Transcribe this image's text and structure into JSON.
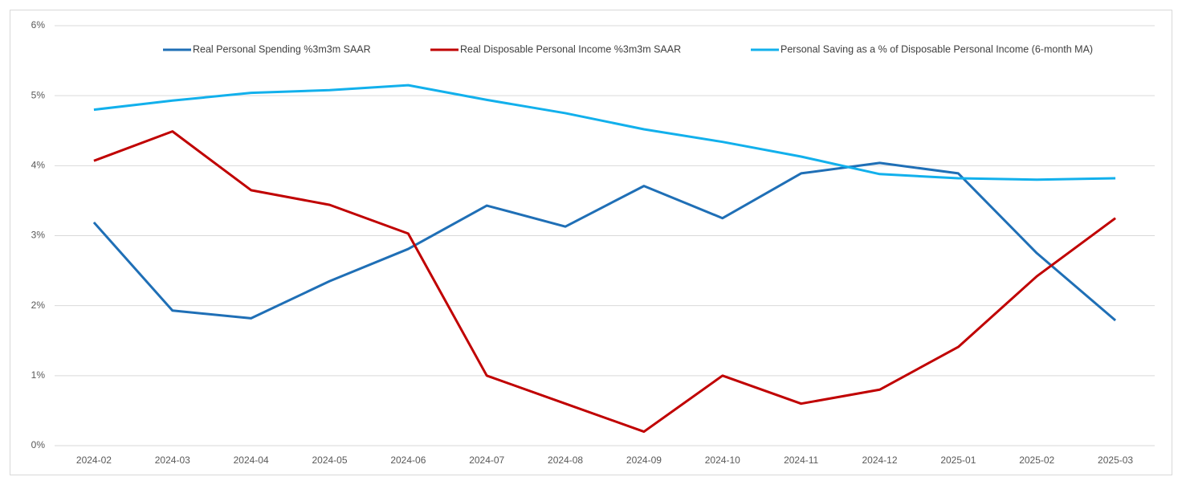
{
  "chart_data": {
    "type": "line",
    "categories": [
      "2024-02",
      "2024-03",
      "2024-04",
      "2024-05",
      "2024-06",
      "2024-07",
      "2024-08",
      "2024-09",
      "2024-10",
      "2024-11",
      "2024-12",
      "2025-01",
      "2025-02",
      "2025-03"
    ],
    "series": [
      {
        "name": "Real Personal Spending %3m3m SAAR",
        "color": "#1f6fb6",
        "values": [
          3.19,
          1.93,
          1.82,
          2.35,
          2.81,
          3.43,
          3.13,
          3.71,
          3.25,
          3.89,
          4.04,
          3.89,
          2.75,
          1.79
        ]
      },
      {
        "name": "Real Disposable Personal Income  %3m3m SAAR",
        "color": "#c00000",
        "values": [
          4.07,
          4.49,
          3.65,
          3.44,
          3.03,
          1.0,
          0.6,
          0.2,
          1.0,
          0.6,
          0.8,
          1.41,
          2.42,
          3.25
        ]
      },
      {
        "name": "Personal Saving as a % of Disposable Personal Income (6-month MA)",
        "color": "#12b0ec",
        "values": [
          4.8,
          4.93,
          5.04,
          5.08,
          5.15,
          4.94,
          4.75,
          4.52,
          4.34,
          4.13,
          3.88,
          3.82,
          3.8,
          3.82
        ]
      }
    ],
    "ylim": [
      0,
      6
    ],
    "yticks": [
      {
        "value": 0,
        "label": "0%"
      },
      {
        "value": 1,
        "label": "1%"
      },
      {
        "value": 2,
        "label": "2%"
      },
      {
        "value": 3,
        "label": "3%"
      },
      {
        "value": 4,
        "label": "4%"
      },
      {
        "value": 5,
        "label": "5%"
      },
      {
        "value": 6,
        "label": "6%"
      }
    ],
    "grid": true,
    "legend": "top"
  }
}
